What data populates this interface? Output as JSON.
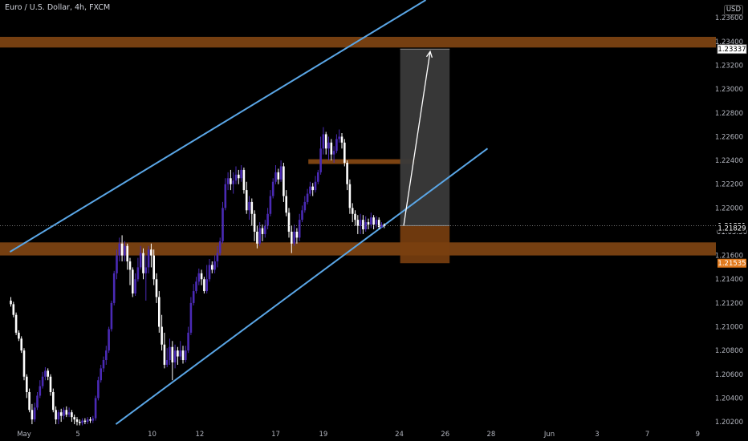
{
  "header": {
    "symbol_title": "Euro / U.S. Dollar, 4h, FXCM",
    "currency": "USD"
  },
  "colors": {
    "background": "#000000",
    "bull_candle": "#4a2ab5",
    "bear_candle": "#ffffff",
    "zone": "#8a4a14",
    "channel_line": "#5aa6e6",
    "target_box": "#3a3a3a",
    "stop_box": "#7a3f10"
  },
  "chart_data": {
    "type": "candlestick",
    "title": "Euro / U.S. Dollar, 4h, FXCM",
    "ylim": [
      1.2016,
      1.2375
    ],
    "y_ticks": [
      "1.20200",
      "1.20400",
      "1.20600",
      "1.20800",
      "1.21000",
      "1.21200",
      "1.21400",
      "1.21600",
      "1.22000",
      "1.22200",
      "1.22400",
      "1.22600",
      "1.22800",
      "1.23000",
      "1.23200",
      "1.23400",
      "1.23600"
    ],
    "x_ticks": [
      "May",
      "5",
      "10",
      "12",
      "17",
      "19",
      "24",
      "26",
      "28",
      "Jun",
      "3",
      "7",
      "9"
    ],
    "price_tags": [
      {
        "label": "1.23337",
        "value": 1.23337,
        "style": "light"
      },
      {
        "label": "1.21851",
        "value": 1.21851,
        "style": "dark"
      },
      {
        "label": "01:05:50",
        "value": 1.218,
        "style": "dark-small"
      },
      {
        "label": "1.21829",
        "value": 1.21829,
        "style": "dark"
      },
      {
        "label": "1.21535",
        "value": 1.21535,
        "style": "orange"
      }
    ],
    "zones": [
      {
        "name": "resistance",
        "from": 1.2335,
        "to": 1.2344
      },
      {
        "name": "support",
        "from": 1.216,
        "to": 1.2171
      },
      {
        "name": "range-top",
        "from": 1.2237,
        "to": 1.2241
      }
    ],
    "channel": {
      "upper": [
        [
          -1.6,
          1.2163
        ],
        [
          45.5,
          1.2375
        ]
      ],
      "lower": [
        [
          10.4,
          1.2018
        ],
        [
          52.5,
          1.225
        ]
      ]
    },
    "position": {
      "entry": 1.21851,
      "target": 1.23337,
      "stop": 1.21535,
      "start_x": 42.6,
      "end_x": 48.2
    },
    "current_price": 1.21851,
    "candles": [
      [
        -1.5,
        1.2122,
        1.2119,
        1.2125,
        1.2117
      ],
      [
        -1.2,
        1.2119,
        1.211,
        1.2121,
        1.2108
      ],
      [
        -0.9,
        1.211,
        1.2095,
        1.2112,
        1.2093
      ],
      [
        -0.6,
        1.2095,
        1.209,
        1.2097,
        1.2088
      ],
      [
        -0.3,
        1.209,
        1.208,
        1.2092,
        1.2078
      ],
      [
        0.0,
        1.208,
        1.2058,
        1.2082,
        1.2055
      ],
      [
        0.3,
        1.2058,
        1.2045,
        1.206,
        1.204
      ],
      [
        0.6,
        1.2045,
        1.203,
        1.2048,
        1.2028
      ],
      [
        0.9,
        1.203,
        1.2022,
        1.2035,
        1.2018
      ],
      [
        1.2,
        1.2022,
        1.2032,
        1.2036,
        1.202
      ],
      [
        1.5,
        1.2032,
        1.2042,
        1.2045,
        1.203
      ],
      [
        1.8,
        1.2042,
        1.205,
        1.2055,
        1.204
      ],
      [
        2.1,
        1.205,
        1.2058,
        1.2062,
        1.2048
      ],
      [
        2.4,
        1.2058,
        1.2063,
        1.2066,
        1.2055
      ],
      [
        2.7,
        1.2063,
        1.2058,
        1.2065,
        1.2055
      ],
      [
        3.0,
        1.2058,
        1.2045,
        1.206,
        1.2042
      ],
      [
        3.3,
        1.2045,
        1.203,
        1.2048,
        1.2028
      ],
      [
        3.6,
        1.203,
        1.2022,
        1.2033,
        1.2018
      ],
      [
        3.9,
        1.2022,
        1.2028,
        1.203,
        1.2018
      ],
      [
        4.2,
        1.2028,
        1.2025,
        1.2031,
        1.202
      ],
      [
        4.5,
        1.2025,
        1.203,
        1.2032,
        1.2022
      ],
      [
        4.8,
        1.203,
        1.2026,
        1.2033,
        1.2024
      ],
      [
        5.1,
        1.2026,
        1.2028,
        1.2032,
        1.2024
      ],
      [
        5.4,
        1.2028,
        1.2024,
        1.203,
        1.202
      ],
      [
        5.7,
        1.2024,
        1.2022,
        1.2026,
        1.2018
      ],
      [
        6.0,
        1.2022,
        1.202,
        1.2024,
        1.2017
      ],
      [
        6.3,
        1.202,
        1.2019,
        1.2022,
        1.2017
      ],
      [
        6.6,
        1.2019,
        1.2021,
        1.2023,
        1.2017
      ],
      [
        6.9,
        1.2021,
        1.202,
        1.2023,
        1.2018
      ],
      [
        7.2,
        1.202,
        1.2022,
        1.2024,
        1.2018
      ],
      [
        7.5,
        1.2022,
        1.2021,
        1.2024,
        1.2019
      ],
      [
        7.8,
        1.2021,
        1.2023,
        1.2025,
        1.2019
      ],
      [
        8.1,
        1.2023,
        1.204,
        1.2042,
        1.2021
      ],
      [
        8.4,
        1.204,
        1.2055,
        1.2058,
        1.2038
      ],
      [
        8.7,
        1.2055,
        1.2065,
        1.2068,
        1.2053
      ],
      [
        9.0,
        1.2065,
        1.2072,
        1.2075,
        1.2062
      ],
      [
        9.3,
        1.2072,
        1.208,
        1.2084,
        1.2068
      ],
      [
        9.6,
        1.208,
        1.2098,
        1.21,
        1.2078
      ],
      [
        9.9,
        1.2098,
        1.212,
        1.2122,
        1.2096
      ],
      [
        10.2,
        1.212,
        1.2145,
        1.2147,
        1.2118
      ],
      [
        10.5,
        1.2145,
        1.216,
        1.2165,
        1.214
      ],
      [
        10.8,
        1.216,
        1.217,
        1.2175,
        1.2155
      ],
      [
        11.1,
        1.217,
        1.216,
        1.2177,
        1.2155
      ],
      [
        11.4,
        1.216,
        1.2168,
        1.2172,
        1.2155
      ],
      [
        11.7,
        1.2168,
        1.2155,
        1.217,
        1.2148
      ],
      [
        12.0,
        1.2155,
        1.2148,
        1.2158,
        1.2135
      ],
      [
        12.3,
        1.2148,
        1.2128,
        1.215,
        1.2125
      ],
      [
        12.6,
        1.2128,
        1.214,
        1.2145,
        1.2126
      ],
      [
        12.9,
        1.214,
        1.215,
        1.2158,
        1.2138
      ],
      [
        13.2,
        1.215,
        1.2162,
        1.2168,
        1.2148
      ],
      [
        13.5,
        1.2162,
        1.2145,
        1.2166,
        1.214
      ],
      [
        13.8,
        1.2145,
        1.215,
        1.216,
        1.2122
      ],
      [
        14.1,
        1.215,
        1.2165,
        1.2168,
        1.2145
      ],
      [
        14.4,
        1.2165,
        1.216,
        1.217,
        1.215
      ],
      [
        14.7,
        1.216,
        1.214,
        1.2165,
        1.2135
      ],
      [
        15.0,
        1.214,
        1.2125,
        1.2145,
        1.212
      ],
      [
        15.3,
        1.2125,
        1.21,
        1.213,
        1.2095
      ],
      [
        15.6,
        1.21,
        1.2085,
        1.211,
        1.208
      ],
      [
        15.9,
        1.2085,
        1.2068,
        1.2095,
        1.2065
      ],
      [
        16.2,
        1.2068,
        1.2072,
        1.2082,
        1.2066
      ],
      [
        16.5,
        1.2072,
        1.2083,
        1.209,
        1.2068
      ],
      [
        16.8,
        1.2083,
        1.207,
        1.2088,
        1.2055
      ],
      [
        17.1,
        1.207,
        1.208,
        1.2085,
        1.2065
      ],
      [
        17.4,
        1.208,
        1.2075,
        1.2083,
        1.2068
      ],
      [
        17.7,
        1.2075,
        1.208,
        1.2088,
        1.2072
      ],
      [
        18.0,
        1.208,
        1.2072,
        1.2084,
        1.2069
      ],
      [
        18.3,
        1.2072,
        1.208,
        1.2084,
        1.207
      ],
      [
        18.6,
        1.208,
        1.2095,
        1.21,
        1.2078
      ],
      [
        18.9,
        1.2095,
        1.212,
        1.2125,
        1.2093
      ],
      [
        19.2,
        1.212,
        1.213,
        1.2136,
        1.2118
      ],
      [
        19.5,
        1.213,
        1.2138,
        1.2142,
        1.2128
      ],
      [
        19.8,
        1.2138,
        1.2145,
        1.2149,
        1.2135
      ],
      [
        20.1,
        1.2145,
        1.214,
        1.2148,
        1.2135
      ],
      [
        20.4,
        1.214,
        1.213,
        1.2142,
        1.2128
      ],
      [
        20.7,
        1.213,
        1.214,
        1.2152,
        1.2128
      ],
      [
        21.0,
        1.214,
        1.2152,
        1.2157,
        1.2138
      ],
      [
        21.3,
        1.2152,
        1.2148,
        1.2155,
        1.2145
      ],
      [
        21.6,
        1.2148,
        1.2155,
        1.216,
        1.2145
      ],
      [
        21.9,
        1.2155,
        1.2162,
        1.2168,
        1.215
      ],
      [
        22.2,
        1.2162,
        1.2172,
        1.2175,
        1.216
      ],
      [
        22.5,
        1.2172,
        1.22,
        1.2205,
        1.217
      ],
      [
        22.8,
        1.22,
        1.222,
        1.2225,
        1.2198
      ],
      [
        23.1,
        1.222,
        1.2225,
        1.223,
        1.2215
      ],
      [
        23.4,
        1.2225,
        1.222,
        1.2232,
        1.2215
      ],
      [
        23.7,
        1.222,
        1.2223,
        1.223,
        1.2212
      ],
      [
        24.0,
        1.2223,
        1.2228,
        1.2235,
        1.222
      ],
      [
        24.3,
        1.2228,
        1.2225,
        1.2232,
        1.222
      ],
      [
        24.6,
        1.2225,
        1.2232,
        1.2236,
        1.2222
      ],
      [
        24.9,
        1.2232,
        1.2215,
        1.2234,
        1.2212
      ],
      [
        25.2,
        1.2215,
        1.2198,
        1.2222,
        1.2195
      ],
      [
        25.5,
        1.2198,
        1.2205,
        1.221,
        1.219
      ],
      [
        25.8,
        1.2205,
        1.2195,
        1.2208,
        1.2185
      ],
      [
        26.1,
        1.2195,
        1.218,
        1.2198,
        1.2172
      ],
      [
        26.4,
        1.218,
        1.217,
        1.2185,
        1.2166
      ],
      [
        26.7,
        1.217,
        1.2183,
        1.2188,
        1.2168
      ],
      [
        27.0,
        1.2183,
        1.2178,
        1.2186,
        1.2172
      ],
      [
        27.3,
        1.2178,
        1.2185,
        1.219,
        1.2175
      ],
      [
        27.6,
        1.2185,
        1.2195,
        1.22,
        1.2182
      ],
      [
        27.9,
        1.2195,
        1.221,
        1.2215,
        1.2193
      ],
      [
        28.2,
        1.221,
        1.2222,
        1.2225,
        1.2208
      ],
      [
        28.5,
        1.2222,
        1.223,
        1.2236,
        1.222
      ],
      [
        28.8,
        1.223,
        1.2224,
        1.2233,
        1.222
      ],
      [
        29.1,
        1.2224,
        1.2235,
        1.224,
        1.2222
      ],
      [
        29.4,
        1.2235,
        1.221,
        1.2238,
        1.2205
      ],
      [
        29.7,
        1.221,
        1.2196,
        1.2215,
        1.2193
      ],
      [
        30.0,
        1.2196,
        1.218,
        1.22,
        1.2175
      ],
      [
        30.3,
        1.218,
        1.217,
        1.2185,
        1.2162
      ],
      [
        30.6,
        1.217,
        1.218,
        1.2186,
        1.2168
      ],
      [
        30.9,
        1.218,
        1.2175,
        1.2183,
        1.217
      ],
      [
        31.2,
        1.2175,
        1.219,
        1.2195,
        1.2172
      ],
      [
        31.5,
        1.219,
        1.2198,
        1.2202,
        1.2188
      ],
      [
        31.8,
        1.2198,
        1.2205,
        1.221,
        1.2196
      ],
      [
        32.1,
        1.2205,
        1.2212,
        1.2216,
        1.2203
      ],
      [
        32.4,
        1.2212,
        1.2218,
        1.2222,
        1.221
      ],
      [
        32.7,
        1.2218,
        1.2215,
        1.2221,
        1.221
      ],
      [
        33.0,
        1.2215,
        1.2222,
        1.2227,
        1.2213
      ],
      [
        33.3,
        1.2222,
        1.223,
        1.2232,
        1.222
      ],
      [
        33.6,
        1.223,
        1.225,
        1.226,
        1.2228
      ],
      [
        33.9,
        1.225,
        1.2262,
        1.2268,
        1.2245
      ],
      [
        34.2,
        1.2262,
        1.225,
        1.2264,
        1.2245
      ],
      [
        34.5,
        1.225,
        1.2255,
        1.226,
        1.224
      ],
      [
        34.8,
        1.2255,
        1.2245,
        1.2258,
        1.224
      ],
      [
        35.1,
        1.2245,
        1.2248,
        1.2252,
        1.2238
      ],
      [
        35.4,
        1.2248,
        1.2258,
        1.2262,
        1.2246
      ],
      [
        35.7,
        1.2258,
        1.226,
        1.2266,
        1.2255
      ],
      [
        36.0,
        1.226,
        1.2255,
        1.2263,
        1.225
      ],
      [
        36.3,
        1.2255,
        1.2238,
        1.2258,
        1.2235
      ],
      [
        36.6,
        1.2238,
        1.222,
        1.224,
        1.2215
      ],
      [
        36.9,
        1.222,
        1.22,
        1.2224,
        1.2195
      ],
      [
        37.2,
        1.22,
        1.2195,
        1.2204,
        1.2188
      ],
      [
        37.5,
        1.2195,
        1.219,
        1.2198,
        1.2185
      ],
      [
        37.8,
        1.219,
        1.2185,
        1.2194,
        1.2178
      ],
      [
        38.1,
        1.2185,
        1.219,
        1.2195,
        1.2178
      ],
      [
        38.4,
        1.219,
        1.2182,
        1.2194,
        1.2178
      ],
      [
        38.7,
        1.2182,
        1.2188,
        1.2193,
        1.218
      ],
      [
        39.0,
        1.2188,
        1.2186,
        1.2191,
        1.2182
      ],
      [
        39.3,
        1.2186,
        1.2192,
        1.2196,
        1.2183
      ],
      [
        39.6,
        1.2192,
        1.2186,
        1.2194,
        1.2182
      ],
      [
        39.9,
        1.2186,
        1.219,
        1.2193,
        1.2183
      ],
      [
        40.2,
        1.219,
        1.2184,
        1.2192,
        1.2182
      ],
      [
        40.5,
        1.2184,
        1.2186,
        1.2188,
        1.2183
      ],
      [
        40.8,
        1.2186,
        1.2185,
        1.2187,
        1.2183
      ]
    ]
  }
}
